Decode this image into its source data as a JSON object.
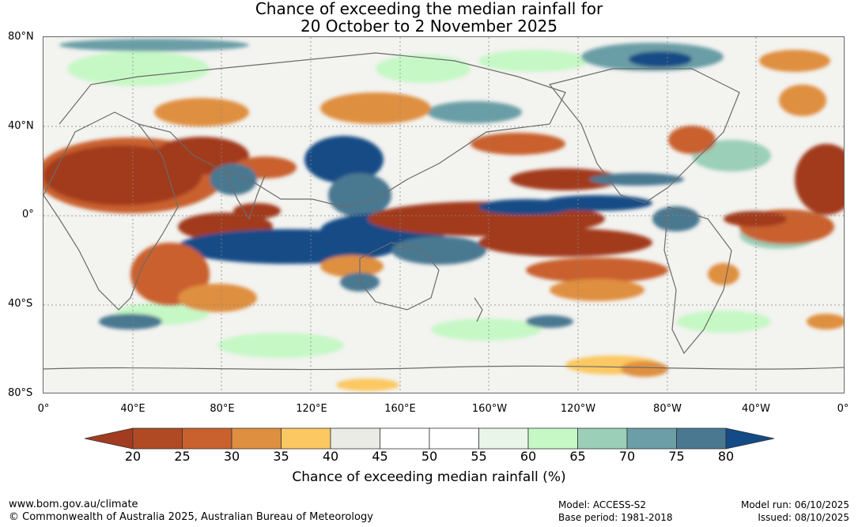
{
  "title": {
    "line1": "Chance of exceeding the median rainfall for",
    "line2": "20 October to 2 November 2025"
  },
  "map": {
    "lat_labels": [
      "80°N",
      "40°N",
      "0°",
      "40°S",
      "80°S"
    ],
    "lon_labels": [
      "0°",
      "40°E",
      "80°E",
      "120°E",
      "160°E",
      "160°W",
      "120°W",
      "80°W",
      "40°W",
      "0°"
    ],
    "lon_labels_geo": [
      0,
      40,
      80,
      120,
      160,
      200,
      240,
      280,
      320,
      360
    ],
    "lat_labels_geo": [
      80,
      40,
      0,
      -40,
      -80
    ],
    "lat_range": [
      -80,
      80
    ],
    "lon_range": [
      0,
      360
    ]
  },
  "colorbar": {
    "ticks": [
      "20",
      "25",
      "30",
      "35",
      "40",
      "45",
      "50",
      "55",
      "60",
      "65",
      "70",
      "75",
      "80"
    ],
    "colors": [
      "#a23b1f",
      "#b04a24",
      "#c9612f",
      "#df8f40",
      "#fbc862",
      "#ebebe6",
      "#ffffff",
      "#ffffff",
      "#e9f5e9",
      "#c6f8c6",
      "#9bcfb8",
      "#6b9ea6",
      "#4a7891",
      "#134b86"
    ],
    "title": "Chance of exceeding median rainfall (%)"
  },
  "footer": {
    "url": "www.bom.gov.au/climate",
    "copyright": "© Commonwealth of Australia 2025, Australian Bureau of Meteorology",
    "model": "Model: ACCESS-S2",
    "base_period": "Base period: 1981-2018",
    "model_run": "Model run: 06/10/2025",
    "issued": "Issued: 08/10/2025"
  }
}
